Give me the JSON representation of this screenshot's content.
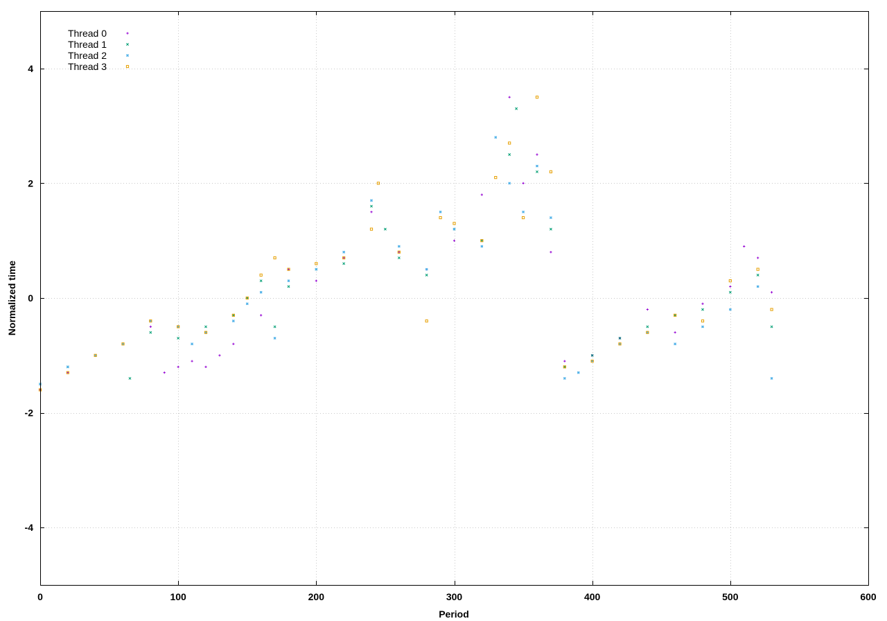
{
  "chart_data": {
    "type": "scatter",
    "title": "",
    "xlabel": "Period",
    "ylabel": "Normalized time",
    "xlim": [
      0,
      600
    ],
    "ylim": [
      -5,
      5
    ],
    "x_ticks": [
      0,
      100,
      200,
      300,
      400,
      500,
      600
    ],
    "y_ticks": [
      -4,
      -2,
      0,
      2,
      4
    ],
    "grid": true,
    "legend_position": "top-left",
    "series": [
      {
        "name": "Thread 0",
        "marker": "plus",
        "color": "#9400d3",
        "x": [
          0,
          20,
          40,
          60,
          80,
          90,
          100,
          110,
          120,
          130,
          140,
          160,
          180,
          200,
          220,
          240,
          260,
          280,
          300,
          320,
          340,
          350,
          360,
          370,
          380,
          400,
          420,
          440,
          460,
          480,
          500,
          510,
          520,
          530
        ],
        "y": [
          -1.6,
          -1.3,
          -1.0,
          -0.8,
          -0.5,
          -1.3,
          -1.2,
          -1.1,
          -1.2,
          -1.0,
          -0.8,
          -0.3,
          0.5,
          0.3,
          0.7,
          1.5,
          0.8,
          0.5,
          1.0,
          1.8,
          3.5,
          2.0,
          2.5,
          0.8,
          -1.1,
          -1.0,
          -0.7,
          -0.2,
          -0.6,
          -0.1,
          0.2,
          0.9,
          0.7,
          0.1
        ]
      },
      {
        "name": "Thread 1",
        "marker": "cross",
        "color": "#009e73",
        "x": [
          0,
          20,
          40,
          60,
          65,
          80,
          100,
          120,
          140,
          150,
          160,
          170,
          180,
          200,
          220,
          240,
          250,
          260,
          280,
          300,
          320,
          340,
          345,
          360,
          370,
          380,
          400,
          420,
          440,
          460,
          480,
          500,
          520,
          530
        ],
        "y": [
          -1.5,
          -1.2,
          -1.0,
          -0.8,
          -1.4,
          -0.6,
          -0.7,
          -0.5,
          -0.3,
          0.0,
          0.3,
          -0.5,
          0.2,
          0.5,
          0.6,
          1.6,
          1.2,
          0.7,
          0.4,
          1.2,
          1.0,
          2.5,
          3.3,
          2.2,
          1.2,
          -1.2,
          -1.0,
          -0.7,
          -0.5,
          -0.3,
          -0.2,
          0.1,
          0.4,
          -0.5
        ]
      },
      {
        "name": "Thread 2",
        "marker": "star",
        "color": "#56b4e9",
        "x": [
          0,
          20,
          40,
          60,
          80,
          100,
          110,
          120,
          140,
          150,
          160,
          170,
          180,
          200,
          220,
          240,
          260,
          280,
          290,
          300,
          320,
          330,
          340,
          350,
          360,
          370,
          380,
          390,
          400,
          420,
          440,
          460,
          480,
          500,
          520,
          530
        ],
        "y": [
          -1.5,
          -1.2,
          -1.0,
          -0.8,
          -0.4,
          -0.5,
          -0.8,
          -0.6,
          -0.4,
          -0.1,
          0.1,
          -0.7,
          0.3,
          0.5,
          0.8,
          1.7,
          0.9,
          0.5,
          1.5,
          1.2,
          0.9,
          2.8,
          2.0,
          1.5,
          2.3,
          1.4,
          -1.4,
          -1.3,
          -1.1,
          -0.8,
          -0.6,
          -0.8,
          -0.5,
          -0.2,
          0.2,
          -1.4
        ]
      },
      {
        "name": "Thread 3",
        "marker": "square",
        "color": "#e69f00",
        "x": [
          0,
          20,
          40,
          60,
          80,
          100,
          120,
          140,
          150,
          160,
          170,
          180,
          200,
          220,
          240,
          245,
          260,
          280,
          290,
          300,
          320,
          330,
          340,
          350,
          360,
          370,
          380,
          400,
          420,
          440,
          460,
          480,
          500,
          520,
          530
        ],
        "y": [
          -1.6,
          -1.3,
          -1.0,
          -0.8,
          -0.4,
          -0.5,
          -0.6,
          -0.3,
          0.0,
          0.4,
          0.7,
          0.5,
          0.6,
          0.7,
          1.2,
          2.0,
          0.8,
          -0.4,
          1.4,
          1.3,
          1.0,
          2.1,
          2.7,
          1.4,
          3.5,
          2.2,
          -1.2,
          -1.1,
          -0.8,
          -0.6,
          -0.3,
          -0.4,
          0.3,
          0.5,
          -0.2
        ]
      }
    ]
  }
}
